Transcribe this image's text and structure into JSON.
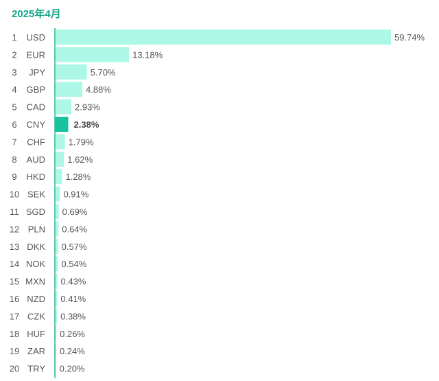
{
  "title": "2025年4月",
  "colors": {
    "bar": "#adf7e6",
    "highlight": "#18c29c",
    "title": "#13a68a",
    "axis": "#33b896"
  },
  "chart_data": {
    "type": "bar",
    "orientation": "horizontal",
    "title": "2025年4月",
    "highlight": "CNY",
    "ranks": [
      "1",
      "2",
      "3",
      "4",
      "5",
      "6",
      "7",
      "8",
      "9",
      "10",
      "11",
      "12",
      "13",
      "14",
      "15",
      "16",
      "17",
      "18",
      "19",
      "20"
    ],
    "categories": [
      "USD",
      "EUR",
      "JPY",
      "GBP",
      "CAD",
      "CNY",
      "CHF",
      "AUD",
      "HKD",
      "SEK",
      "SGD",
      "PLN",
      "DKK",
      "NOK",
      "MXN",
      "NZD",
      "CZK",
      "HUF",
      "ZAR",
      "TRY"
    ],
    "values": [
      59.74,
      13.18,
      5.7,
      4.88,
      2.93,
      2.38,
      1.79,
      1.62,
      1.28,
      0.91,
      0.69,
      0.64,
      0.57,
      0.54,
      0.43,
      0.41,
      0.38,
      0.26,
      0.24,
      0.2
    ],
    "labels": [
      "59.74%",
      "13.18%",
      "5.70%",
      "4.88%",
      "2.93%",
      "2.38%",
      "1.79%",
      "1.62%",
      "1.28%",
      "0.91%",
      "0.69%",
      "0.64%",
      "0.57%",
      "0.54%",
      "0.43%",
      "0.41%",
      "0.38%",
      "0.26%",
      "0.24%",
      "0.20%"
    ]
  }
}
